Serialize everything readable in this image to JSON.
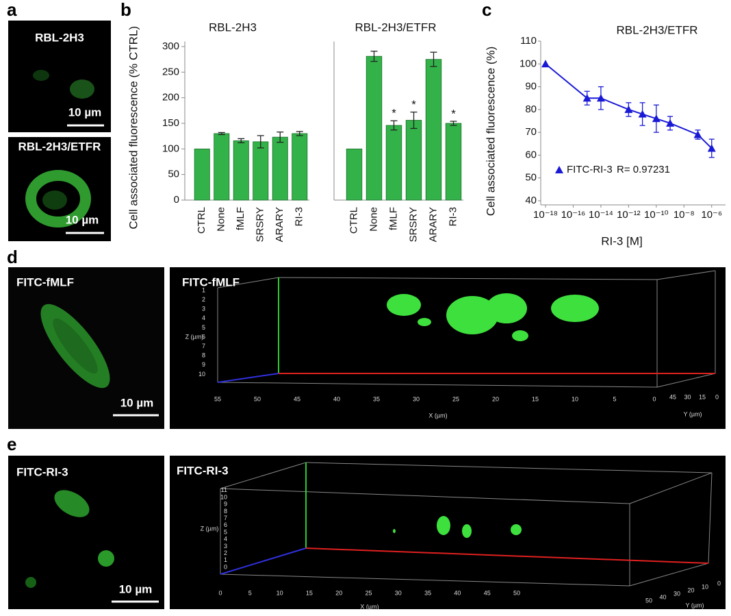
{
  "panel_letters": [
    "a",
    "b",
    "c",
    "d",
    "e"
  ],
  "images": [
    {
      "label": "RBL-2H3",
      "scale_bar": "10 µm"
    },
    {
      "label": "RBL-2H3/ETFR",
      "scale_bar": "10 µm"
    },
    {
      "label": "FITC-fMLF",
      "scale_bar": "10 µm"
    },
    {
      "label": "FITC-RI-3",
      "scale_bar": "10 µm"
    }
  ],
  "volumes": [
    {
      "label": "FITC-fMLF",
      "z_title": "Z (µm)",
      "z_ticks": [
        1,
        2,
        3,
        4,
        5,
        6,
        7,
        8,
        9,
        10
      ],
      "x_title": "X (µm)",
      "x_ticks": [
        55,
        50,
        45,
        40,
        35,
        30,
        25,
        20,
        15,
        10,
        5,
        0
      ],
      "y_title": "Y (µm)",
      "y_ticks": [
        45,
        30,
        15,
        0
      ]
    },
    {
      "label": "FITC-RI-3",
      "z_title": "Z (µm)",
      "z_ticks": [
        0,
        1,
        2,
        3,
        4,
        5,
        6,
        7,
        8,
        9,
        10,
        11
      ],
      "x_title": "X (µm)",
      "x_ticks": [
        0,
        5,
        10,
        15,
        20,
        25,
        30,
        35,
        40,
        45,
        50
      ],
      "y_title": "Y (µm)",
      "y_ticks": [
        50,
        40,
        30,
        20,
        10,
        0
      ]
    }
  ],
  "chart_data": [
    {
      "type": "bar",
      "title": "RBL-2H3",
      "ylabel": "Cell associated fluorescence (% CTRL)",
      "categories": [
        "CTRL",
        "None",
        "fMLF",
        "SRSRY",
        "ARARY",
        "RI-3"
      ],
      "values": [
        100,
        130,
        116,
        114,
        123,
        130
      ],
      "errors": [
        null,
        2,
        4,
        12,
        10,
        4
      ],
      "color": "#33b249",
      "ylim": [
        0,
        310
      ],
      "yticks": [
        0,
        50,
        100,
        150,
        200,
        250,
        300
      ]
    },
    {
      "type": "bar",
      "title": "RBL-2H3/ETFR",
      "categories": [
        "CTRL",
        "None",
        "fMLF",
        "SRSRY",
        "ARARY",
        "RI-3"
      ],
      "values": [
        100,
        281,
        146,
        156,
        275,
        150
      ],
      "errors": [
        null,
        10,
        9,
        16,
        14,
        4
      ],
      "annotations": [
        null,
        null,
        "*",
        "*",
        null,
        "*"
      ],
      "color": "#33b249",
      "ylim": [
        0,
        310
      ]
    },
    {
      "type": "line",
      "title": "RBL-2H3/ETFR",
      "xlabel": "RI-3 [M]",
      "ylabel": "Cell associated fluorescence (%)",
      "log_x": true,
      "x": [
        1e-18,
        1e-15,
        1e-14,
        1e-12,
        1e-11,
        1e-10,
        1e-09,
        1e-07,
        1e-06
      ],
      "series": [
        {
          "name": "FITC-RI-3",
          "color": "#1a1ad6",
          "values": [
            100,
            85,
            85,
            80,
            78,
            76,
            74,
            69,
            63
          ],
          "errors": [
            null,
            3,
            5,
            3,
            5,
            6,
            3,
            2,
            4
          ]
        }
      ],
      "annotation": "R= 0.97231",
      "legend": "lower left",
      "xlim": [
        1e-18,
        1e-05
      ],
      "xticks": [
        {
          "value": 1e-18,
          "label": "10⁻¹⁸"
        },
        {
          "value": 1e-16,
          "label": "10⁻¹⁶"
        },
        {
          "value": 1e-14,
          "label": "10⁻¹⁴"
        },
        {
          "value": 1e-12,
          "label": "10⁻¹²"
        },
        {
          "value": 1e-10,
          "label": "10⁻¹⁰"
        },
        {
          "value": 1e-08,
          "label": "10⁻⁸"
        },
        {
          "value": 1e-06,
          "label": "10⁻⁶"
        }
      ],
      "ylim": [
        40,
        110
      ],
      "yticks": [
        40,
        50,
        60,
        70,
        80,
        90,
        100,
        110
      ]
    }
  ]
}
